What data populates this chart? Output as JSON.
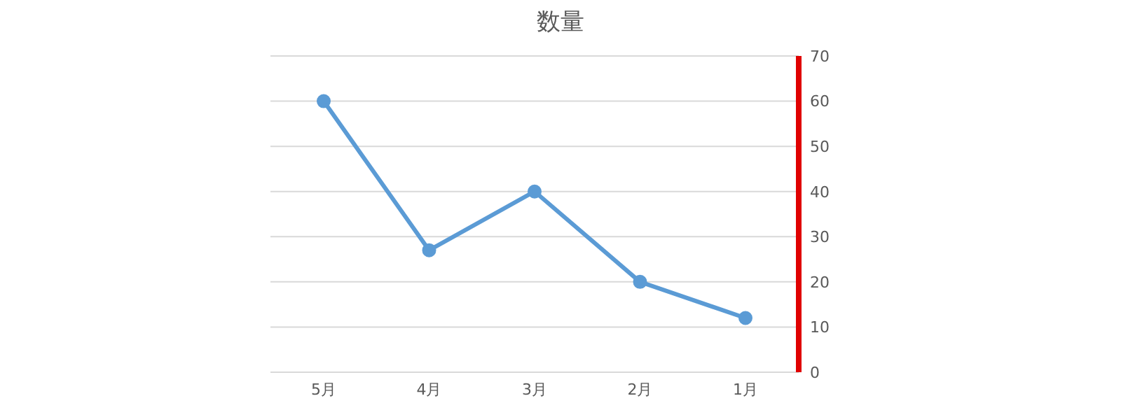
{
  "chart_data": {
    "type": "line",
    "title": "数量",
    "categories": [
      "5月",
      "4月",
      "3月",
      "2月",
      "1月"
    ],
    "series": [
      {
        "color": "#5b9bd5",
        "values": [
          60,
          27,
          40,
          20,
          12
        ]
      }
    ],
    "ylim": [
      0,
      70
    ],
    "yticks": [
      0,
      10,
      20,
      30,
      40,
      50,
      60,
      70
    ],
    "grid": "y",
    "marker": "circle"
  }
}
